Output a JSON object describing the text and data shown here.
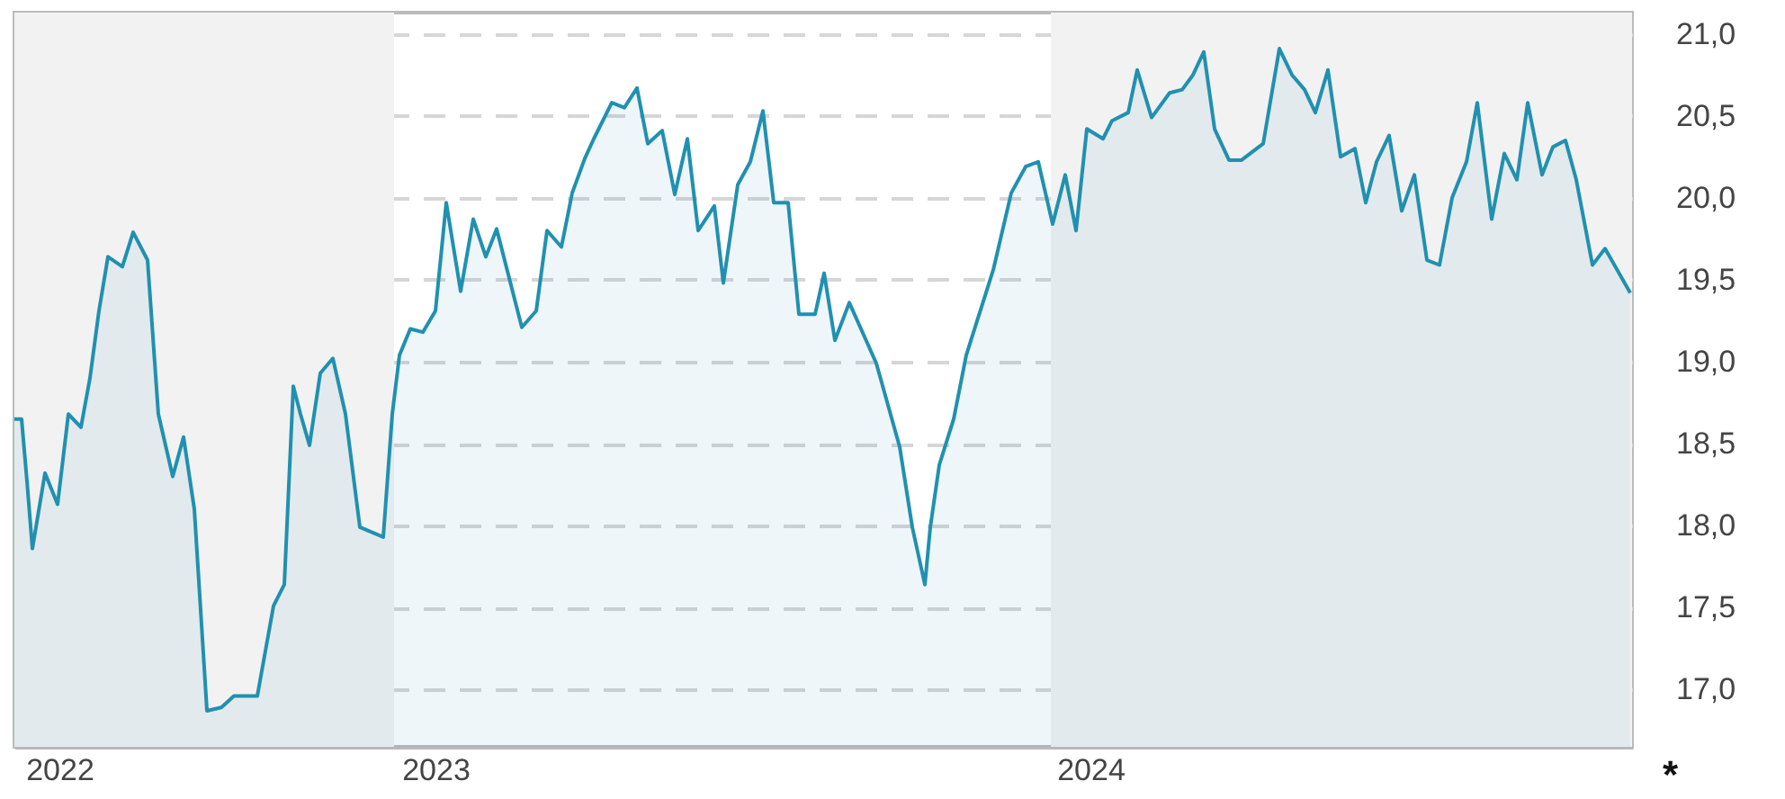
{
  "chart_data": {
    "type": "area",
    "grid": "y",
    "line_style": "solid",
    "xlim": [
      "2022-06-04",
      "2024-11-19"
    ],
    "xticks": [
      {
        "value": "2022-06-29",
        "label": "2022"
      },
      {
        "value": "2023-01-24",
        "label": "2023"
      },
      {
        "value": "2024-01-23",
        "label": "2024"
      }
    ],
    "ylim": [
      16.65,
      21.13
    ],
    "yticks": [
      {
        "value": 17,
        "label": "17,0"
      },
      {
        "value": 17.5,
        "label": "17,5"
      },
      {
        "value": 18,
        "label": "18,0"
      },
      {
        "value": 18.5,
        "label": "18,5"
      },
      {
        "value": 19,
        "label": "19,0"
      },
      {
        "value": 19.5,
        "label": "19,5"
      },
      {
        "value": 20,
        "label": "20,0"
      },
      {
        "value": 20.5,
        "label": "20,5"
      },
      {
        "value": 21,
        "label": "21,0"
      }
    ],
    "bands": [
      {
        "axis": "x",
        "from": "2022-06-04",
        "to": "2023-01-01",
        "color": "#f2f2f2"
      },
      {
        "axis": "x",
        "from": "2024-01-01",
        "to": "2024-11-19",
        "color": "#f2f2f2"
      }
    ],
    "annotations": [
      "*"
    ],
    "x": [
      "2022-06-04",
      "2022-06-08",
      "2022-06-11",
      "2022-06-14",
      "2022-06-16",
      "2022-06-21",
      "2022-06-28",
      "2022-07-04",
      "2022-07-11",
      "2022-07-16",
      "2022-07-21",
      "2022-07-26",
      "2022-08-03",
      "2022-08-09",
      "2022-08-17",
      "2022-08-23",
      "2022-08-31",
      "2022-09-06",
      "2022-09-12",
      "2022-09-19",
      "2022-09-27",
      "2022-10-04",
      "2022-10-17",
      "2022-10-26",
      "2022-11-01",
      "2022-11-06",
      "2022-11-10",
      "2022-11-15",
      "2022-11-21",
      "2022-11-28",
      "2022-12-05",
      "2022-12-13",
      "2022-12-26",
      "2022-12-31",
      "2023-01-04",
      "2023-01-10",
      "2023-01-17",
      "2023-01-24",
      "2023-01-30",
      "2023-02-07",
      "2023-02-14",
      "2023-02-21",
      "2023-02-27",
      "2023-03-13",
      "2023-03-21",
      "2023-03-27",
      "2023-04-04",
      "2023-04-10",
      "2023-04-17",
      "2023-04-22",
      "2023-05-02",
      "2023-05-09",
      "2023-05-16",
      "2023-05-22",
      "2023-05-30",
      "2023-06-06",
      "2023-06-13",
      "2023-06-19",
      "2023-06-28",
      "2023-07-03",
      "2023-07-11",
      "2023-07-18",
      "2023-07-25",
      "2023-07-31",
      "2023-08-08",
      "2023-08-14",
      "2023-08-23",
      "2023-08-28",
      "2023-09-03",
      "2023-09-11",
      "2023-09-26",
      "2023-10-09",
      "2023-10-16",
      "2023-10-23",
      "2023-10-26",
      "2023-10-31",
      "2023-11-08",
      "2023-11-15",
      "2023-11-30",
      "2023-12-10",
      "2023-12-18",
      "2023-12-25",
      "2024-01-02",
      "2024-01-09",
      "2024-01-15",
      "2024-01-21",
      "2024-01-30",
      "2024-02-04",
      "2024-02-13",
      "2024-02-18",
      "2024-02-26",
      "2024-03-07",
      "2024-03-14",
      "2024-03-20",
      "2024-03-26",
      "2024-04-01",
      "2024-04-09",
      "2024-04-16",
      "2024-04-28",
      "2024-05-07",
      "2024-05-14",
      "2024-05-21",
      "2024-05-27",
      "2024-06-03",
      "2024-06-10",
      "2024-06-18",
      "2024-06-24",
      "2024-06-30",
      "2024-07-07",
      "2024-07-14",
      "2024-07-21",
      "2024-07-28",
      "2024-08-04",
      "2024-08-11",
      "2024-08-19",
      "2024-08-25",
      "2024-09-02",
      "2024-09-09",
      "2024-09-16",
      "2024-09-22",
      "2024-09-30",
      "2024-10-06",
      "2024-10-13",
      "2024-10-19",
      "2024-10-28",
      "2024-11-04",
      "2024-11-18"
    ],
    "series": [
      {
        "color": "#2190b0",
        "values": [
          18.65,
          18.65,
          18.27,
          17.86,
          17.99,
          18.32,
          18.13,
          18.68,
          18.6,
          18.9,
          19.31,
          19.64,
          19.58,
          19.79,
          19.62,
          18.68,
          18.3,
          18.54,
          18.1,
          16.87,
          16.89,
          16.96,
          16.96,
          17.51,
          17.64,
          18.85,
          18.68,
          18.49,
          18.93,
          19.02,
          18.68,
          17.99,
          17.93,
          18.68,
          19.04,
          19.2,
          19.18,
          19.31,
          19.97,
          19.43,
          19.87,
          19.64,
          19.81,
          19.21,
          19.31,
          19.8,
          19.7,
          20.03,
          20.24,
          20.36,
          20.58,
          20.55,
          20.67,
          20.33,
          20.41,
          20.02,
          20.36,
          19.8,
          19.95,
          19.48,
          20.08,
          20.22,
          20.53,
          19.97,
          19.97,
          19.29,
          19.29,
          19.54,
          19.13,
          19.36,
          18.99,
          18.48,
          17.99,
          17.64,
          17.99,
          18.37,
          18.65,
          19.04,
          19.56,
          20.03,
          20.19,
          20.22,
          19.84,
          20.14,
          19.8,
          20.42,
          20.36,
          20.47,
          20.52,
          20.78,
          20.49,
          20.64,
          20.66,
          20.75,
          20.89,
          20.42,
          20.23,
          20.23,
          20.33,
          20.91,
          20.75,
          20.66,
          20.52,
          20.78,
          20.25,
          20.3,
          19.97,
          20.22,
          20.38,
          19.92,
          20.14,
          19.62,
          19.59,
          20.0,
          20.22,
          20.58,
          19.87,
          20.27,
          20.11,
          20.58,
          20.14,
          20.31,
          20.35,
          20.11,
          19.59,
          19.69,
          19.42
        ]
      }
    ]
  }
}
